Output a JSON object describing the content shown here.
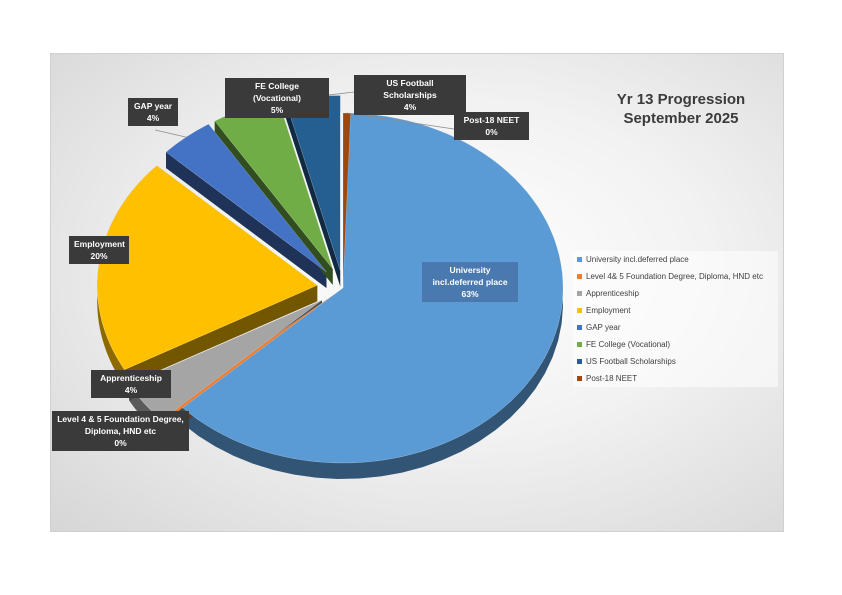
{
  "chart_data": {
    "type": "pie",
    "title": "Yr 13 Progression September 2025",
    "title_lines": [
      "Yr 13 Progression",
      "September 2025"
    ],
    "exploded": true,
    "style": "3d",
    "legend_position": "right",
    "series": [
      {
        "values": [
          63,
          0,
          4,
          20,
          4,
          5,
          4,
          0
        ]
      }
    ],
    "categories": [
      "University incl.deferred place",
      "Level 4 & 5 Foundation Degree, Diploma, HND etc",
      "Apprenticeship",
      "Employment",
      "GAP year",
      "FE College (Vocational)",
      "US Football Scholarships",
      "Post-18 NEET"
    ],
    "legend_labels": [
      "University incl.deferred place",
      "Level 4& 5 Foundation Degree, Diploma, HND etc",
      "Apprenticeship",
      "Employment",
      "GAP year",
      "FE College (Vocational)",
      "US Football Scholarships",
      "Post-18 NEET"
    ],
    "colors": [
      "#5b9bd5",
      "#ed7d31",
      "#a5a5a5",
      "#ffc000",
      "#4472c4",
      "#70ad47",
      "#255e91",
      "#9e480e"
    ],
    "data_labels": [
      {
        "lines": [
          "University",
          "incl.deferred place",
          "63%"
        ]
      },
      {
        "lines": [
          "Level 4 & 5 Foundation Degree,",
          "Diploma, HND etc",
          "0%"
        ]
      },
      {
        "lines": [
          "Apprenticeship",
          "4%"
        ]
      },
      {
        "lines": [
          "Employment",
          "20%"
        ]
      },
      {
        "lines": [
          "GAP year",
          "4%"
        ]
      },
      {
        "lines": [
          "FE College (Vocational)",
          "5%"
        ]
      },
      {
        "lines": [
          "US Football Scholarships",
          "4%"
        ]
      },
      {
        "lines": [
          "Post-18 NEET",
          "0%"
        ]
      }
    ]
  }
}
